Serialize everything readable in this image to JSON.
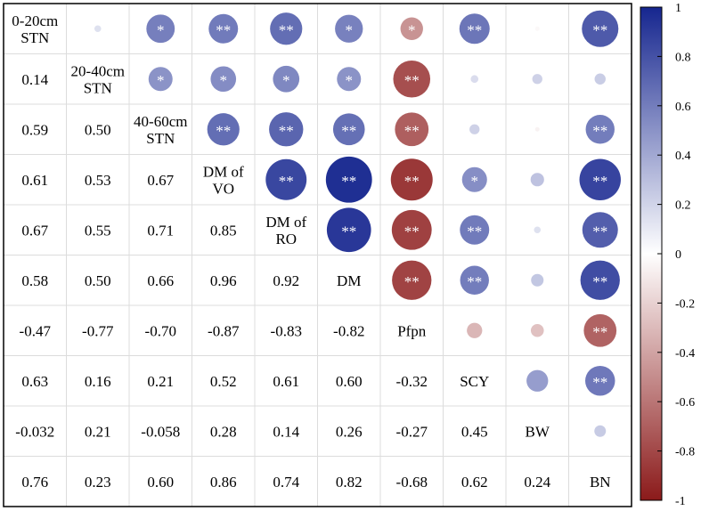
{
  "chart_data": {
    "type": "heatmap",
    "subtype": "correlation-matrix",
    "variables": [
      "0-20cm STN",
      "20-40cm STN",
      "40-60cm STN",
      "DM of VO",
      "DM of RO",
      "DM",
      "Pfpn",
      "SCY",
      "BW",
      "BN"
    ],
    "diagonal_labels": [
      [
        "0-20cm",
        "STN"
      ],
      [
        "20-40cm",
        "STN"
      ],
      [
        "40-60cm",
        "STN"
      ],
      [
        "DM of",
        "VO"
      ],
      [
        "DM of",
        "RO"
      ],
      [
        "DM"
      ],
      [
        "Pfpn"
      ],
      [
        "SCY"
      ],
      [
        "BW"
      ],
      [
        "BN"
      ]
    ],
    "lower_values": [
      [],
      [
        "0.14"
      ],
      [
        "0.59",
        "0.50"
      ],
      [
        "0.61",
        "0.53",
        "0.67"
      ],
      [
        "0.67",
        "0.55",
        "0.71",
        "0.85"
      ],
      [
        "0.58",
        "0.50",
        "0.66",
        "0.96",
        "0.92"
      ],
      [
        "-0.47",
        "-0.77",
        "-0.70",
        "-0.87",
        "-0.83",
        "-0.82"
      ],
      [
        "0.63",
        "0.16",
        "0.21",
        "0.52",
        "0.61",
        "0.60",
        "-0.32"
      ],
      [
        "-0.032",
        "0.21",
        "-0.058",
        "0.28",
        "0.14",
        "0.26",
        "-0.27",
        "0.45"
      ],
      [
        "0.76",
        "0.23",
        "0.60",
        "0.86",
        "0.74",
        "0.82",
        "-0.68",
        "0.62",
        "0.24"
      ]
    ],
    "significance": [
      [
        "",
        "",
        "*",
        "**",
        "**",
        "*",
        "*",
        "**",
        "",
        "**"
      ],
      [
        "",
        "",
        "*",
        "*",
        "*",
        "*",
        "**",
        "",
        "",
        ""
      ],
      [
        "",
        "",
        "",
        "**",
        "**",
        "**",
        "**",
        "",
        "",
        "**"
      ],
      [
        "",
        "",
        "",
        "",
        "**",
        "**",
        "**",
        "*",
        "",
        "**"
      ],
      [
        "",
        "",
        "",
        "",
        "",
        "**",
        "**",
        "**",
        "",
        "**"
      ],
      [
        "",
        "",
        "",
        "",
        "",
        "",
        "**",
        "**",
        "",
        "**"
      ],
      [
        "",
        "",
        "",
        "",
        "",
        "",
        "",
        "",
        "",
        "**"
      ],
      [
        "",
        "",
        "",
        "",
        "",
        "",
        "",
        "",
        "",
        "**"
      ],
      [
        "",
        "",
        "",
        "",
        "",
        "",
        "",
        "",
        "",
        ""
      ],
      [
        "",
        "",
        "",
        "",
        "",
        "",
        "",
        "",
        "",
        ""
      ]
    ],
    "color_scale": {
      "min": -1,
      "max": 1,
      "low_color": "#8b1a1a",
      "mid_color": "#ffffff",
      "high_color": "#16268f",
      "ticks": [
        "1",
        "0.8",
        "0.6",
        "0.4",
        "0.2",
        "0",
        "-0.2",
        "-0.4",
        "-0.6",
        "-0.8",
        "-1"
      ]
    },
    "grid_color": "#dcdcdc",
    "border_color": "#000000"
  }
}
